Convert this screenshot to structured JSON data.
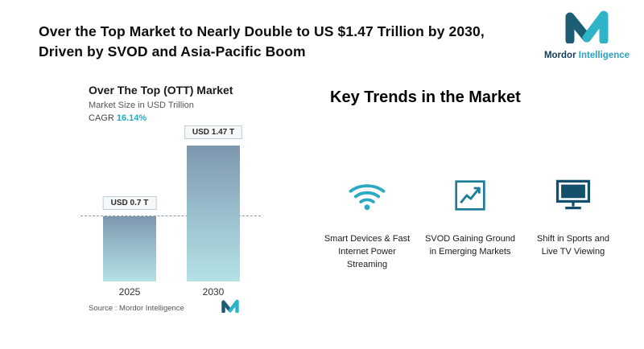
{
  "header": {
    "title_line1": "Over the Top Market to Nearly Double to US $1.47 Trillion by 2030,",
    "title_line2": "Driven by SVOD and Asia-Pacific Boom",
    "brand_primary": "Mordor",
    "brand_secondary": "Intelligence"
  },
  "chart": {
    "title": "Over The Top (OTT) Market",
    "subtitle": "Market Size in USD Trillion",
    "cagr_label": "CAGR",
    "cagr_value": "16.14%",
    "source_label": "Source :",
    "source_value": "Mordor Intelligence"
  },
  "chart_data": {
    "type": "bar",
    "categories": [
      "2025",
      "2030"
    ],
    "values": [
      0.7,
      1.47
    ],
    "value_labels": [
      "USD 0.7 T",
      "USD 1.47 T"
    ],
    "title": "Over The Top (OTT) Market",
    "xlabel": "",
    "ylabel": "Market Size in USD Trillion",
    "unit": "USD Trillion",
    "ylim": [
      0,
      1.6
    ],
    "cagr_percent": 16.14,
    "reference_line_value": 0.7,
    "grid": false,
    "legend": false,
    "bar_gradient_top": "#7e96ae",
    "bar_gradient_bottom": "#b3e2e5"
  },
  "trends": {
    "heading": "Key Trends in the Market",
    "items": [
      {
        "icon": "wifi-icon",
        "label": "Smart Devices & Fast Internet Power Streaming"
      },
      {
        "icon": "growth-chart-icon",
        "label": "SVOD Gaining Ground in Emerging Markets"
      },
      {
        "icon": "tv-icon",
        "label": "Shift in Sports and Live TV Viewing"
      }
    ]
  },
  "colors": {
    "accent_teal": "#2aa9c2",
    "brand_dark": "#1c5c74",
    "brand_teal": "#2fb4c7",
    "text_dark": "#0d0d0d"
  }
}
